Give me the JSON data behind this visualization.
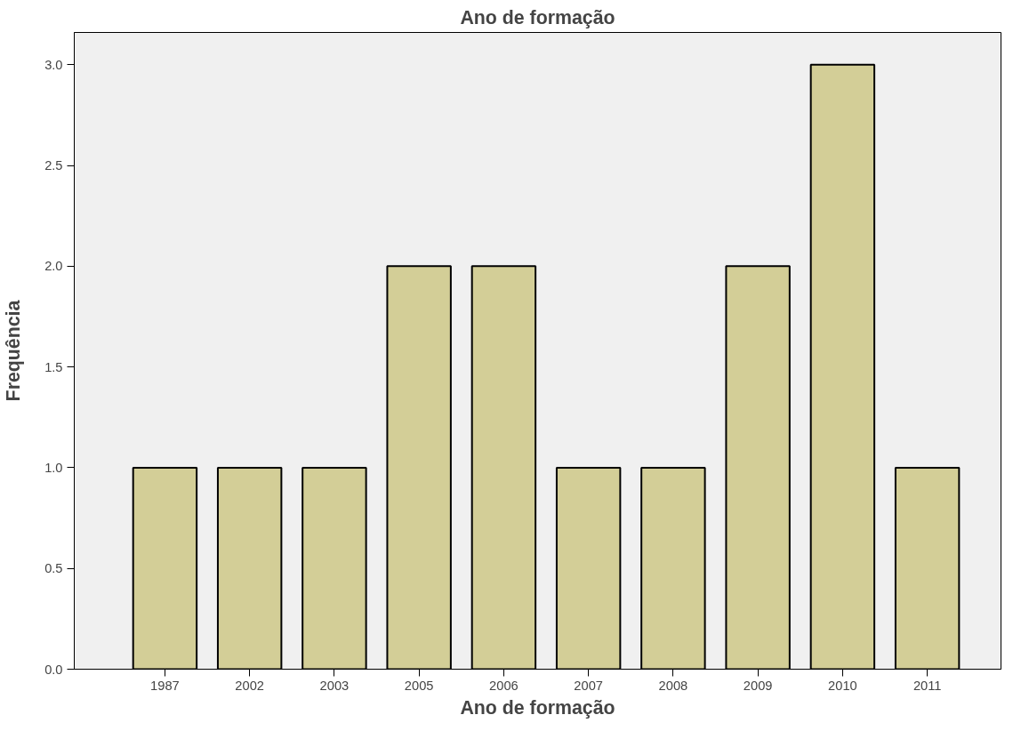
{
  "chart_data": {
    "type": "bar",
    "title": "Ano de formação",
    "xlabel": "Ano de formação",
    "ylabel": "Frequência",
    "categories": [
      "1987",
      "2002",
      "2003",
      "2005",
      "2006",
      "2007",
      "2008",
      "2009",
      "2010",
      "2011"
    ],
    "values": [
      1,
      1,
      1,
      2,
      2,
      1,
      1,
      2,
      3,
      1
    ],
    "color": "#d3ce97",
    "ylim": [
      0,
      3.16
    ],
    "yticks": [
      {
        "value": 0,
        "label": "0.0"
      },
      {
        "value": 0.5,
        "label": "0.5"
      },
      {
        "value": 1,
        "label": "1.0"
      },
      {
        "value": 1.5,
        "label": "1.5"
      },
      {
        "value": 2,
        "label": "2.0"
      },
      {
        "value": 2.5,
        "label": "2.5"
      },
      {
        "value": 3,
        "label": "3.0"
      }
    ],
    "grid": false
  }
}
